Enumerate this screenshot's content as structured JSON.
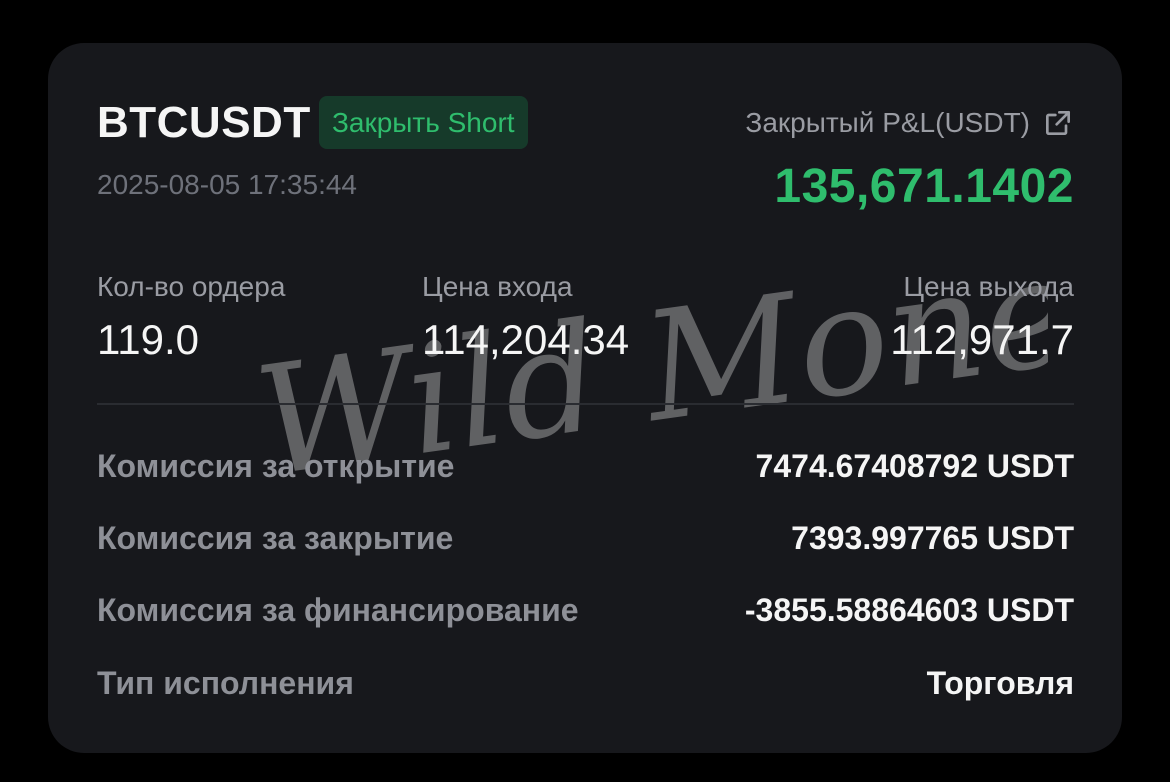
{
  "header": {
    "symbol": "BTCUSDT",
    "side_badge": "Закрыть Short",
    "timestamp": "2025-08-05 17:35:44"
  },
  "pnl": {
    "label": "Закрытый P&L(USDT)",
    "value": "135,671.1402",
    "icon": "external-link-icon"
  },
  "stats": [
    {
      "label": "Кол-во ордера",
      "value": "119.0"
    },
    {
      "label": "Цена входа",
      "value": "114,204.34"
    },
    {
      "label": "Цена выхода",
      "value": "112,971.7"
    }
  ],
  "details": [
    {
      "label": "Комиссия за открытие",
      "value": "7474.67408792 USDT"
    },
    {
      "label": "Комиссия за закрытие",
      "value": "7393.997765 USDT"
    },
    {
      "label": "Комиссия за финансирование",
      "value": "-3855.58864603 USDT"
    },
    {
      "label": "Тип исполнения",
      "value": "Торговля"
    }
  ],
  "watermark": {
    "text": "Wild Money Pro"
  },
  "colors": {
    "background": "#000000",
    "card": "#17181c",
    "accent_green": "#2fbd6d",
    "badge_bg": "#163a2a",
    "text_primary": "#f5f5f5",
    "text_secondary": "#9a9ca3"
  }
}
